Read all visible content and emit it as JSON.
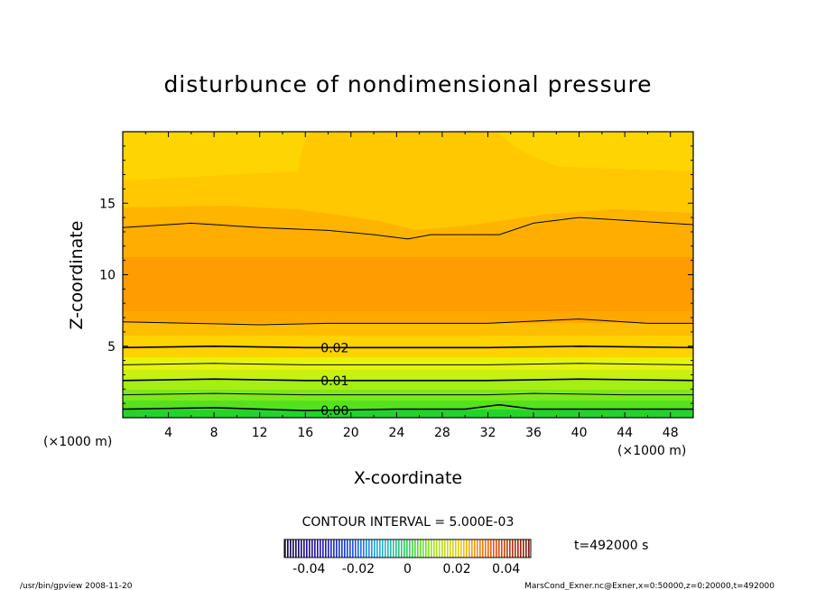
{
  "chart_data": {
    "type": "contour",
    "title": "disturbunce of nondimensional pressure",
    "xlabel": "X-coordinate",
    "ylabel": "Z-coordinate",
    "x_unit": "(×1000 m)",
    "y_unit": "(×1000 m)",
    "xlim": [
      0,
      50
    ],
    "ylim": [
      0,
      20
    ],
    "x_ticks": [
      4,
      8,
      12,
      16,
      20,
      24,
      28,
      32,
      36,
      40,
      44,
      48
    ],
    "y_ticks": [
      5,
      10,
      15
    ],
    "contour_interval_label": "CONTOUR INTERVAL = 5.000E-03",
    "contour_labels": [
      {
        "text": "0.02",
        "x": 17.0,
        "z": 4.9
      },
      {
        "text": "0.01",
        "x": 17.0,
        "z": 2.6
      },
      {
        "text": "0.00",
        "x": 17.0,
        "z": 0.5
      }
    ],
    "contours": [
      {
        "level": 0.0,
        "points": [
          [
            0,
            0.6
          ],
          [
            8,
            0.7
          ],
          [
            16,
            0.5
          ],
          [
            24,
            0.6
          ],
          [
            30,
            0.6
          ],
          [
            33,
            0.9
          ],
          [
            36,
            0.6
          ],
          [
            44,
            0.6
          ],
          [
            50,
            0.6
          ]
        ]
      },
      {
        "level": 0.005,
        "points": [
          [
            0,
            1.6
          ],
          [
            8,
            1.7
          ],
          [
            16,
            1.6
          ],
          [
            24,
            1.6
          ],
          [
            32,
            1.6
          ],
          [
            36,
            1.7
          ],
          [
            44,
            1.6
          ],
          [
            50,
            1.6
          ]
        ]
      },
      {
        "level": 0.01,
        "points": [
          [
            0,
            2.6
          ],
          [
            8,
            2.7
          ],
          [
            16,
            2.6
          ],
          [
            24,
            2.6
          ],
          [
            32,
            2.6
          ],
          [
            40,
            2.7
          ],
          [
            50,
            2.6
          ]
        ]
      },
      {
        "level": 0.015,
        "points": [
          [
            0,
            3.7
          ],
          [
            8,
            3.8
          ],
          [
            16,
            3.7
          ],
          [
            24,
            3.7
          ],
          [
            32,
            3.7
          ],
          [
            40,
            3.8
          ],
          [
            50,
            3.7
          ]
        ]
      },
      {
        "level": 0.02,
        "points": [
          [
            0,
            4.9
          ],
          [
            8,
            5.0
          ],
          [
            16,
            4.9
          ],
          [
            24,
            4.9
          ],
          [
            32,
            4.9
          ],
          [
            40,
            5.0
          ],
          [
            50,
            4.9
          ]
        ]
      },
      {
        "level": 0.025,
        "points": [
          [
            0,
            6.7
          ],
          [
            6,
            6.6
          ],
          [
            12,
            6.5
          ],
          [
            18,
            6.6
          ],
          [
            24,
            6.6
          ],
          [
            32,
            6.6
          ],
          [
            40,
            6.9
          ],
          [
            46,
            6.6
          ],
          [
            50,
            6.6
          ]
        ]
      },
      {
        "level": 0.025,
        "points": [
          [
            0,
            13.3
          ],
          [
            6,
            13.6
          ],
          [
            12,
            13.3
          ],
          [
            18,
            13.1
          ],
          [
            22,
            12.8
          ],
          [
            25,
            12.5
          ],
          [
            27,
            12.8
          ],
          [
            33,
            12.8
          ],
          [
            36,
            13.6
          ],
          [
            40,
            14.0
          ],
          [
            44,
            13.8
          ],
          [
            50,
            13.5
          ]
        ]
      }
    ],
    "colorbar": {
      "ticks": [
        "-0.04",
        "-0.02",
        "0",
        "0.02",
        "0.04"
      ],
      "min": -0.05,
      "max": 0.05
    },
    "time_label": "t=492000 s"
  },
  "footer": {
    "left": "/usr/bin/gpview   2008-11-20",
    "right": "MarsCond_Exner.nc@Exner,x=0:50000,z=0:20000,t=492000"
  },
  "colors": {
    "band_00": "#22d42a",
    "band_05": "#55e21e",
    "band_10": "#a4ee14",
    "band_15": "#e6f40c",
    "band_20": "#ffd200",
    "band_25": "#ffb400",
    "band_30": "#ff9c00",
    "top_band": "#ffd400"
  }
}
